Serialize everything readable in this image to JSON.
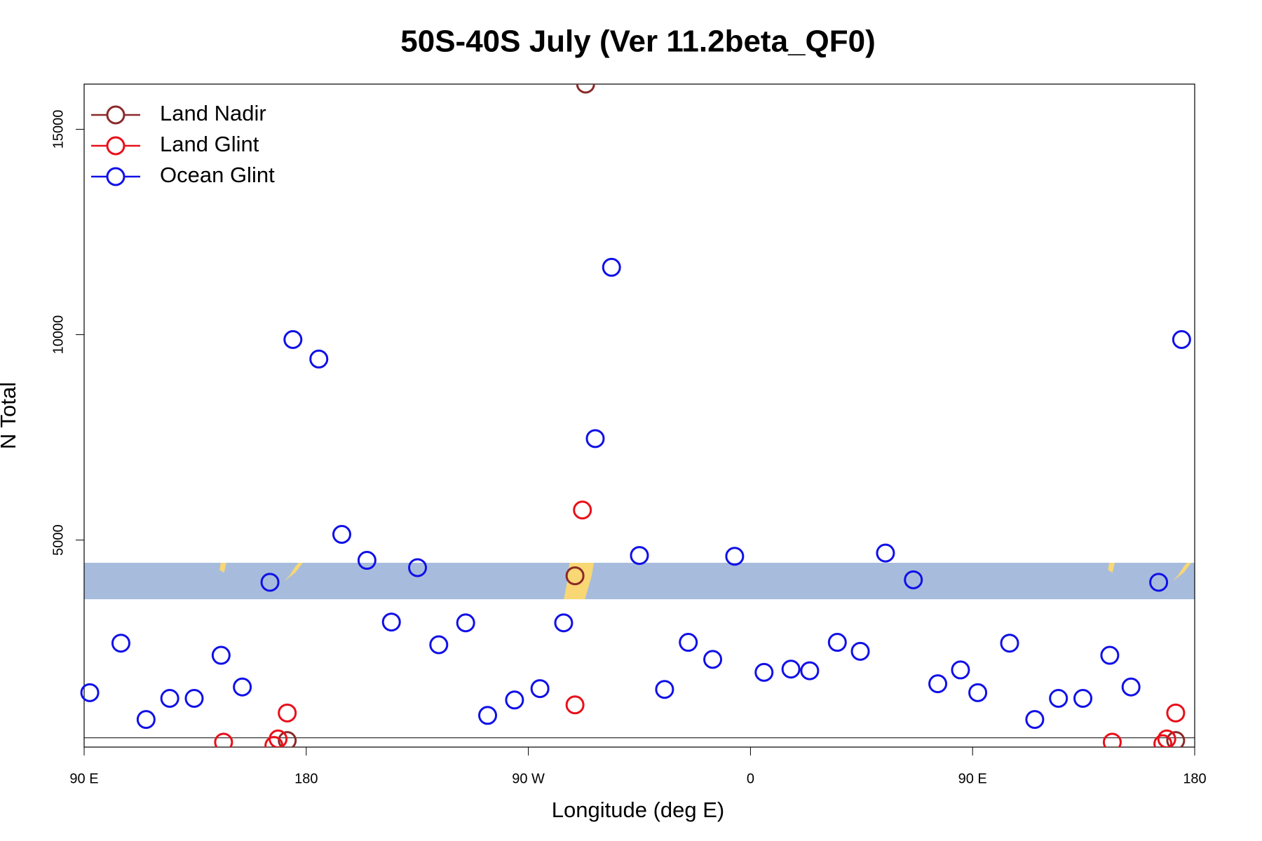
{
  "chart_data": {
    "type": "scatter",
    "title": "50S-40S July (Ver 11.2beta_QF0)",
    "x_label": "Longitude (deg E)",
    "y_label": "N Total",
    "xlim": [
      90,
      540
    ],
    "ylim": [
      -40,
      16100
    ],
    "xticks": [
      {
        "value": 90,
        "label": "90 E"
      },
      {
        "value": 180,
        "label": "180"
      },
      {
        "value": 270,
        "label": "90 W"
      },
      {
        "value": 360,
        "label": "0"
      },
      {
        "value": 450,
        "label": "90 E"
      },
      {
        "value": 540,
        "label": "180"
      }
    ],
    "yticks": [
      5000,
      10000,
      15000
    ],
    "legend": "top-left",
    "series": [
      {
        "name": "Land Nadir",
        "color": "#8b2a2a",
        "x": [
          293.2,
          288.9,
          172.3,
          532.3
        ],
        "values": [
          16100,
          4130,
          119,
          119
        ]
      },
      {
        "name": "Land Glint",
        "color": "#e8101a",
        "x": [
          146.5,
          168.6,
          166.9,
          172.3,
          291.9,
          288.9,
          506.6,
          528.7,
          527.1,
          532.3
        ],
        "values": [
          79,
          158,
          0,
          790,
          5731,
          988,
          79,
          158,
          40,
          790
        ]
      },
      {
        "name": "Ocean Glint",
        "color": "#1010e8",
        "x": [
          92.3,
          104.9,
          115.1,
          124.7,
          134.6,
          145.5,
          154.1,
          165.3,
          174.6,
          185.1,
          194.4,
          204.6,
          214.5,
          225.1,
          233.7,
          244.6,
          253.5,
          264.4,
          274.7,
          284.3,
          297.1,
          303.7,
          315.0,
          325.2,
          334.8,
          344.7,
          353.6,
          365.5,
          376.4,
          384.0,
          395.2,
          404.5,
          414.7,
          426.0,
          435.9,
          445.1,
          452.1,
          465.0,
          475.2,
          484.8,
          494.7,
          505.6,
          514.2,
          525.4,
          534.7
        ],
        "values": [
          1285,
          2490,
          632,
          1146,
          1146,
          2194,
          1423,
          3972,
          9881,
          9407,
          5138,
          4506,
          3004,
          4328,
          2451,
          2984,
          731,
          1107,
          1383,
          2984,
          7470,
          11640,
          4625,
          1364,
          2510,
          2095,
          4605,
          1779,
          1858,
          1818,
          2510,
          2292,
          4684,
          4032,
          1502,
          1838,
          1285,
          2490,
          632,
          1146,
          1146,
          2194,
          1423,
          3972,
          9881
        ]
      }
    ]
  }
}
